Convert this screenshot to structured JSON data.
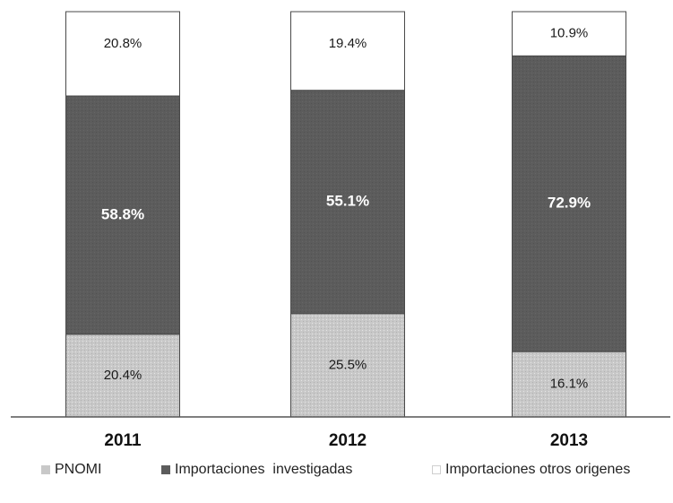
{
  "chart_data": {
    "type": "bar",
    "stacked": true,
    "percent": true,
    "categories": [
      "2011",
      "2012",
      "2013"
    ],
    "series": [
      {
        "name": "PNOMI",
        "values": [
          20.4,
          25.5,
          16.1
        ],
        "labels": [
          "20.4%",
          "25.5%",
          "16.1%"
        ],
        "color": "#c8c8c8"
      },
      {
        "name": "Importaciones  investigadas",
        "values": [
          58.8,
          55.1,
          72.9
        ],
        "labels": [
          "58.8%",
          "55.1%",
          "72.9%"
        ],
        "color": "#5c5c5c"
      },
      {
        "name": "Importaciones otros origenes",
        "values": [
          20.8,
          19.4,
          10.9
        ],
        "labels": [
          "20.8%",
          "19.4%",
          "10.9%"
        ],
        "color": "#ffffff"
      }
    ],
    "ylim": [
      0,
      100
    ],
    "grid": false,
    "legend_position": "bottom",
    "title": "",
    "xlabel": "",
    "ylabel": ""
  }
}
